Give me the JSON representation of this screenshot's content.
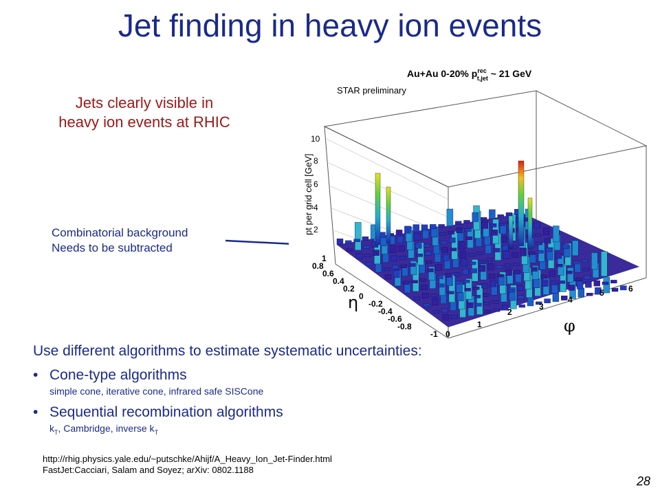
{
  "slide": {
    "title": "Jet finding in heavy ion events",
    "highlight_lines": [
      "Jets clearly visible in",
      "heavy ion events at RHIC"
    ],
    "annotation_lines": [
      "Combinatorial background",
      "Needs to be subtracted"
    ],
    "plot": {
      "header": "Au+Au 0-20% p",
      "header_sup": "rec",
      "header_sub": "t,jet",
      "header_value": " ~ 21 GeV",
      "preliminary": "STAR preliminary",
      "z_axis_label": "pt per grid cell [GeV]",
      "z_ticks": [
        "2",
        "4",
        "6",
        "8",
        "10"
      ],
      "eta_ticks": [
        "1",
        "0.8",
        "0.6",
        "0.4",
        "0.2",
        "0",
        "-0.2",
        "-0.4",
        "-0.6",
        "-0.8",
        "-1"
      ],
      "phi_ticks": [
        "0",
        "1",
        "2",
        "3",
        "4",
        "5",
        "6"
      ],
      "eta_symbol": "η",
      "phi_symbol": "φ"
    },
    "intro": "Use different algorithms to estimate systematic uncertainties:",
    "bullets": [
      {
        "main": "Cone-type algorithms",
        "sub": "simple cone, iterative cone, infrared safe SISCone"
      },
      {
        "main": "Sequential recombination algorithms",
        "sub_parts": [
          "k",
          "T",
          ", Cambridge, inverse k",
          "T"
        ]
      }
    ],
    "references": [
      "http://rhig.physics.yale.edu/~putschke/Ahijf/A_Heavy_Ion_Jet-Finder.html",
      "FastJet:Cacciari, Salam  and Soyez; arXiv: 0802.1188"
    ],
    "page_number": "28"
  }
}
